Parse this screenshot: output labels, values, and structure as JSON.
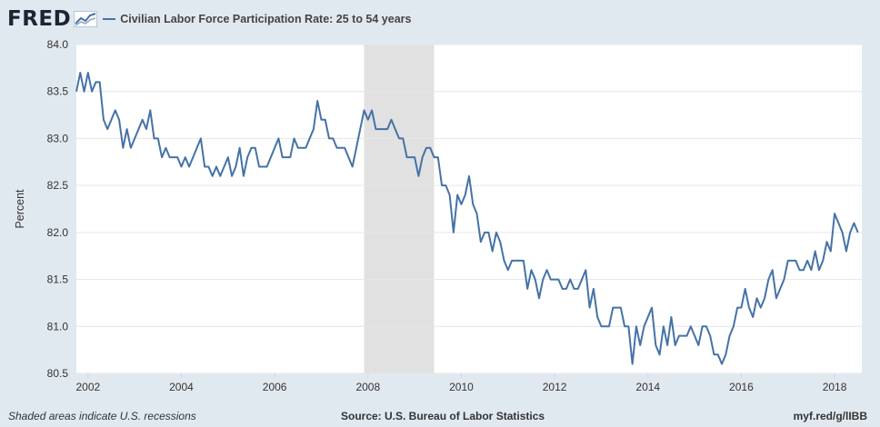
{
  "brand": {
    "logo_text": "FRED"
  },
  "colors": {
    "series": "#4572a7",
    "background": "#e1e9f0",
    "plot_bg": "#ffffff",
    "recession": "#e1e1e1"
  },
  "footer": {
    "note": "Shaded areas indicate U.S. recessions",
    "source": "Source: U.S. Bureau of Labor Statistics",
    "link": "myf.red/g/lIBB"
  },
  "chart_data": {
    "type": "line",
    "title": "",
    "xlabel": "",
    "ylabel": "Percent",
    "ylim": [
      80.5,
      84.0
    ],
    "xlim": [
      "2001-10",
      "2018-08"
    ],
    "y_ticks": [
      "80.5",
      "81.0",
      "81.5",
      "82.0",
      "82.5",
      "83.0",
      "83.5",
      "84.0"
    ],
    "x_ticks": [
      "2002",
      "2004",
      "2006",
      "2008",
      "2010",
      "2012",
      "2014",
      "2016",
      "2018"
    ],
    "grid": true,
    "legend_position": "top-left",
    "recessions": [
      {
        "start": "2007-12",
        "end": "2009-06"
      }
    ],
    "series": [
      {
        "name": "Civilian Labor Force Participation Rate: 25 to 54 years",
        "start": "2001-10",
        "frequency": "monthly",
        "values": [
          83.5,
          83.7,
          83.5,
          83.7,
          83.5,
          83.6,
          83.6,
          83.2,
          83.1,
          83.2,
          83.3,
          83.2,
          82.9,
          83.1,
          82.9,
          83.0,
          83.1,
          83.2,
          83.1,
          83.3,
          83.0,
          83.0,
          82.8,
          82.9,
          82.8,
          82.8,
          82.8,
          82.7,
          82.8,
          82.7,
          82.8,
          82.9,
          83.0,
          82.7,
          82.7,
          82.6,
          82.7,
          82.6,
          82.7,
          82.8,
          82.6,
          82.7,
          82.9,
          82.6,
          82.8,
          82.9,
          82.9,
          82.7,
          82.7,
          82.7,
          82.8,
          82.9,
          83.0,
          82.8,
          82.8,
          82.8,
          83.0,
          82.9,
          82.9,
          82.9,
          83.0,
          83.1,
          83.4,
          83.2,
          83.2,
          83.0,
          83.0,
          82.9,
          82.9,
          82.9,
          82.8,
          82.7,
          82.9,
          83.1,
          83.3,
          83.2,
          83.3,
          83.1,
          83.1,
          83.1,
          83.1,
          83.2,
          83.1,
          83.0,
          83.0,
          82.8,
          82.8,
          82.8,
          82.6,
          82.8,
          82.9,
          82.9,
          82.8,
          82.8,
          82.5,
          82.5,
          82.4,
          82.0,
          82.4,
          82.3,
          82.4,
          82.6,
          82.3,
          82.2,
          81.9,
          82.0,
          82.0,
          81.8,
          82.0,
          81.9,
          81.7,
          81.6,
          81.7,
          81.7,
          81.7,
          81.7,
          81.4,
          81.6,
          81.5,
          81.3,
          81.5,
          81.6,
          81.5,
          81.5,
          81.5,
          81.4,
          81.4,
          81.5,
          81.4,
          81.4,
          81.5,
          81.6,
          81.2,
          81.4,
          81.1,
          81.0,
          81.0,
          81.0,
          81.2,
          81.2,
          81.2,
          81.0,
          81.0,
          80.6,
          81.0,
          80.8,
          81.0,
          81.1,
          81.2,
          80.8,
          80.7,
          81.0,
          80.8,
          81.1,
          80.8,
          80.9,
          80.9,
          80.9,
          81.0,
          80.9,
          80.8,
          81.0,
          81.0,
          80.9,
          80.7,
          80.7,
          80.6,
          80.7,
          80.9,
          81.0,
          81.2,
          81.2,
          81.4,
          81.2,
          81.1,
          81.3,
          81.2,
          81.3,
          81.5,
          81.6,
          81.3,
          81.4,
          81.5,
          81.7,
          81.7,
          81.7,
          81.6,
          81.6,
          81.7,
          81.6,
          81.8,
          81.6,
          81.7,
          81.9,
          81.8,
          82.2,
          82.1,
          82.0,
          81.8,
          82.0,
          82.1,
          82.0
        ]
      }
    ]
  }
}
